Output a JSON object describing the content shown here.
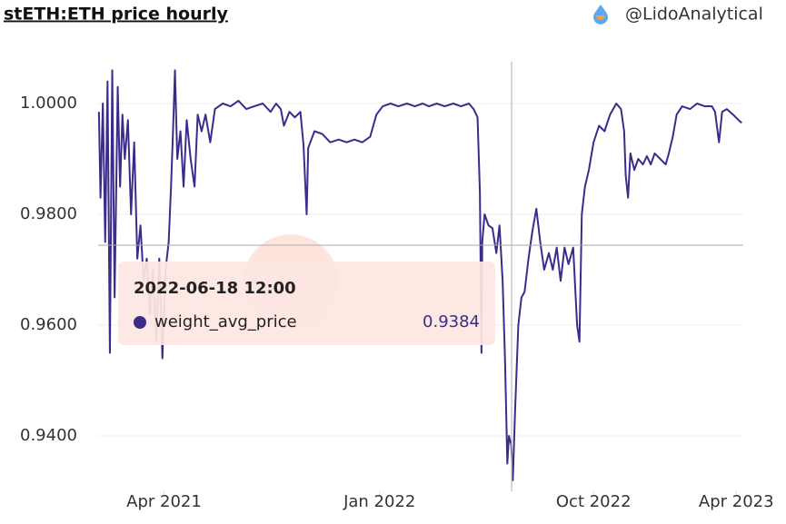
{
  "chart_data": {
    "type": "line",
    "title": "stETH:ETH price hourly",
    "source": "@LidoAnalytical",
    "x": [
      "2021-01-08",
      "2021-01-10",
      "2021-01-13",
      "2021-01-16",
      "2021-01-19",
      "2021-01-22",
      "2021-01-25",
      "2021-01-28",
      "2021-02-01",
      "2021-02-04",
      "2021-02-07",
      "2021-02-10",
      "2021-02-14",
      "2021-02-18",
      "2021-02-22",
      "2021-02-26",
      "2021-03-02",
      "2021-03-06",
      "2021-03-10",
      "2021-03-14",
      "2021-03-18",
      "2021-03-22",
      "2021-03-26",
      "2021-03-30",
      "2021-04-03",
      "2021-04-07",
      "2021-04-10",
      "2021-04-13",
      "2021-04-15",
      "2021-04-18",
      "2021-04-22",
      "2021-04-26",
      "2021-04-30",
      "2021-05-05",
      "2021-05-10",
      "2021-05-14",
      "2021-05-19",
      "2021-05-24",
      "2021-05-30",
      "2021-06-05",
      "2021-06-15",
      "2021-06-25",
      "2021-07-05",
      "2021-07-15",
      "2021-07-25",
      "2021-08-05",
      "2021-08-15",
      "2021-08-22",
      "2021-08-28",
      "2021-09-01",
      "2021-09-08",
      "2021-09-15",
      "2021-09-22",
      "2021-09-26",
      "2021-09-30",
      "2021-10-02",
      "2021-10-10",
      "2021-10-20",
      "2021-10-30",
      "2021-11-10",
      "2021-11-20",
      "2021-11-30",
      "2021-12-10",
      "2021-12-20",
      "2021-12-28",
      "2022-01-05",
      "2022-01-15",
      "2022-01-25",
      "2022-02-05",
      "2022-02-15",
      "2022-02-25",
      "2022-03-05",
      "2022-03-15",
      "2022-03-25",
      "2022-04-05",
      "2022-04-15",
      "2022-04-25",
      "2022-05-01",
      "2022-05-06",
      "2022-05-09",
      "2022-05-11",
      "2022-05-12",
      "2022-05-15",
      "2022-05-20",
      "2022-05-25",
      "2022-05-30",
      "2022-06-03",
      "2022-06-07",
      "2022-06-10",
      "2022-06-13",
      "2022-06-15",
      "2022-06-18",
      "2022-06-20",
      "2022-06-23",
      "2022-06-27",
      "2022-07-01",
      "2022-07-05",
      "2022-07-10",
      "2022-07-15",
      "2022-07-20",
      "2022-07-25",
      "2022-07-30",
      "2022-08-05",
      "2022-08-10",
      "2022-08-15",
      "2022-08-20",
      "2022-08-25",
      "2022-08-30",
      "2022-09-05",
      "2022-09-10",
      "2022-09-13",
      "2022-09-16",
      "2022-09-20",
      "2022-09-25",
      "2022-10-01",
      "2022-10-08",
      "2022-10-15",
      "2022-10-22",
      "2022-10-30",
      "2022-11-05",
      "2022-11-09",
      "2022-11-11",
      "2022-11-14",
      "2022-11-17",
      "2022-11-22",
      "2022-11-27",
      "2022-12-03",
      "2022-12-08",
      "2022-12-13",
      "2022-12-18",
      "2022-12-25",
      "2023-01-01",
      "2023-01-05",
      "2023-01-10",
      "2023-01-15",
      "2023-01-22",
      "2023-02-01",
      "2023-02-10",
      "2023-02-20",
      "2023-03-01",
      "2023-03-05",
      "2023-03-10",
      "2023-03-14",
      "2023-03-20",
      "2023-03-28",
      "2023-04-04",
      "2023-04-08"
    ],
    "series": [
      {
        "name": "weight_avg_price",
        "color": "#3b2c8c",
        "values": [
          0.9985,
          0.983,
          1.0,
          0.975,
          1.004,
          0.955,
          1.006,
          0.965,
          1.003,
          0.985,
          0.998,
          0.99,
          0.997,
          0.98,
          0.993,
          0.972,
          0.978,
          0.968,
          0.972,
          0.962,
          0.97,
          0.957,
          0.972,
          0.954,
          0.97,
          0.975,
          0.985,
          0.997,
          1.006,
          0.99,
          0.995,
          0.985,
          0.997,
          0.99,
          0.985,
          0.998,
          0.995,
          0.998,
          0.993,
          0.999,
          1.0,
          0.9995,
          1.0005,
          0.999,
          0.9995,
          1.0,
          0.9985,
          1.0,
          0.999,
          0.996,
          0.9985,
          0.9975,
          0.9985,
          0.9925,
          0.98,
          0.992,
          0.995,
          0.9945,
          0.993,
          0.9935,
          0.993,
          0.9935,
          0.993,
          0.994,
          0.998,
          0.9995,
          1.0,
          0.9995,
          1.0,
          0.9995,
          1.0,
          0.9995,
          1.0,
          0.9995,
          1.0,
          0.9995,
          1.0,
          0.999,
          0.9975,
          0.984,
          0.955,
          0.975,
          0.98,
          0.978,
          0.9775,
          0.973,
          0.978,
          0.968,
          0.954,
          0.935,
          0.94,
          0.9384,
          0.932,
          0.945,
          0.96,
          0.965,
          0.966,
          0.972,
          0.977,
          0.981,
          0.975,
          0.97,
          0.973,
          0.97,
          0.974,
          0.968,
          0.974,
          0.971,
          0.974,
          0.96,
          0.957,
          0.98,
          0.985,
          0.988,
          0.993,
          0.996,
          0.995,
          0.998,
          1.0,
          0.999,
          0.995,
          0.987,
          0.983,
          0.991,
          0.988,
          0.99,
          0.989,
          0.9905,
          0.989,
          0.991,
          0.99,
          0.989,
          0.991,
          0.994,
          0.998,
          0.9995,
          0.999,
          1.0,
          0.9995,
          0.9995,
          0.9985,
          0.993,
          0.9985,
          0.999,
          0.998,
          0.997,
          0.9965
        ]
      }
    ],
    "xlim": [
      "2021-01-07",
      "2023-04-10"
    ],
    "xticks": [
      {
        "value": "2021-04-01",
        "label": "Apr 2021"
      },
      {
        "value": "2022-01-01",
        "label": "Jan 2022"
      },
      {
        "value": "2022-10-01",
        "label": "Oct 2022"
      },
      {
        "value": "2023-04-01",
        "label": "Apr 2023"
      }
    ],
    "ylim": [
      0.93,
      1.01
    ],
    "yticks": [
      {
        "value": 0.94,
        "label": "0.9400"
      },
      {
        "value": 0.96,
        "label": "0.9600"
      },
      {
        "value": 0.98,
        "label": "0.9800"
      },
      {
        "value": 1,
        "label": "1.0000"
      }
    ],
    "grid": true,
    "tooltip": {
      "x": "2022-06-18 12:00",
      "series": "weight_avg_price",
      "value": 0.9384
    }
  }
}
